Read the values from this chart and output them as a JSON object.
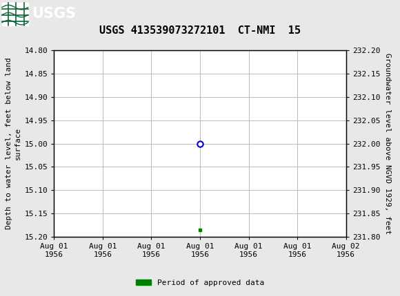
{
  "title": "USGS 413539073272101  CT-NMI  15",
  "ylabel_left": "Depth to water level, feet below land\nsurface",
  "ylabel_right": "Groundwater level above NGVD 1929, feet",
  "ylim_left": [
    15.2,
    14.8
  ],
  "ylim_right": [
    231.8,
    232.2
  ],
  "yticks_left": [
    14.8,
    14.85,
    14.9,
    14.95,
    15.0,
    15.05,
    15.1,
    15.15,
    15.2
  ],
  "yticks_right": [
    231.8,
    231.85,
    231.9,
    231.95,
    232.0,
    232.05,
    232.1,
    232.15,
    232.2
  ],
  "data_point_y": 15.0,
  "approved_point_y": 15.185,
  "xmin_hours": 0,
  "xmax_hours": 36,
  "data_point_x_hours": 18,
  "approved_point_x_hours": 18,
  "xtick_positions_hours": [
    0,
    6,
    12,
    18,
    24,
    30,
    36
  ],
  "xtick_labels": [
    "Aug 01\n1956",
    "Aug 01\n1956",
    "Aug 01\n1956",
    "Aug 01\n1956",
    "Aug 01\n1956",
    "Aug 01\n1956",
    "Aug 02\n1956"
  ],
  "header_color": "#0a6535",
  "plot_bg_color": "#ffffff",
  "outer_bg_color": "#e8e8e8",
  "grid_color": "#bbbbbb",
  "open_circle_color": "#0000cc",
  "approved_color": "#008000",
  "legend_label": "Period of approved data",
  "title_fontsize": 11,
  "tick_fontsize": 8,
  "label_fontsize": 8
}
